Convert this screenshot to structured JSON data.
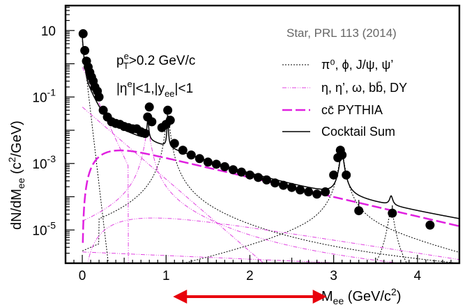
{
  "chart_data": {
    "type": "scatter",
    "xlabel": "M",
    "xlabel_sub": "ee",
    "xlabel_unit": " (GeV/c",
    "xlabel_unit_sup": "2",
    "xlabel_close": ")",
    "ylabel": "dN/dM",
    "ylabel_sub": "ee",
    "ylabel_unit": " (c",
    "ylabel_unit_sup": "2",
    "ylabel_close": "/GeV)",
    "x_range": [
      -0.2,
      4.5
    ],
    "y_range_log10": [
      -6,
      1.75
    ],
    "y_scale": "log",
    "x_ticks": [
      0,
      1,
      2,
      3,
      4
    ],
    "x_tick_labels": [
      "0",
      "1",
      "2",
      "3",
      "4"
    ],
    "y_ticks": [
      {
        "value": 10,
        "base": "10",
        "exp": ""
      },
      {
        "value": 0.1,
        "base": "10",
        "exp": "-1"
      },
      {
        "value": 0.001,
        "base": "10",
        "exp": "-3"
      },
      {
        "value": 1e-05,
        "base": "10",
        "exp": "-5"
      }
    ],
    "source_label": "Star, PRL 113 (2014)",
    "cuts": {
      "line1_pre": "p",
      "line1_sup": "e",
      "line1_sub": "T",
      "line1_post": ">0.2 GeV/c",
      "line2_a": "|η",
      "line2_sup": "e",
      "line2_b": "|<1,|y",
      "line2_sub": "ee",
      "line2_c": "|<1"
    },
    "legend": [
      {
        "label": "π⁰, ϕ, J/ψ, ψ’",
        "style": "dotted",
        "color": "#000000"
      },
      {
        "label": "η, η’, ω, bb̄, DY",
        "style": "dashdot",
        "color": "#e040e0"
      },
      {
        "label": "cc̄ PYTHIA",
        "style": "longdash",
        "color": "#e020e0"
      },
      {
        "label": "Cocktail Sum",
        "style": "solid",
        "color": "#000000"
      }
    ],
    "series": [
      {
        "name": "data",
        "points": [
          [
            0.01,
            8.0
          ],
          [
            0.03,
            2.5
          ],
          [
            0.05,
            1.2
          ],
          [
            0.07,
            0.8
          ],
          [
            0.09,
            0.55
          ],
          [
            0.11,
            0.4
          ],
          [
            0.13,
            0.3
          ],
          [
            0.15,
            0.2
          ],
          [
            0.18,
            0.15
          ],
          [
            0.2,
            0.1
          ],
          [
            0.25,
            0.04
          ],
          [
            0.3,
            0.025
          ],
          [
            0.35,
            0.018
          ],
          [
            0.4,
            0.016
          ],
          [
            0.45,
            0.015
          ],
          [
            0.5,
            0.013
          ],
          [
            0.55,
            0.012
          ],
          [
            0.6,
            0.011
          ],
          [
            0.65,
            0.011
          ],
          [
            0.7,
            0.009
          ],
          [
            0.75,
            0.008
          ],
          [
            0.78,
            0.025
          ],
          [
            0.8,
            0.05
          ],
          [
            0.83,
            0.018
          ],
          [
            0.95,
            0.012
          ],
          [
            1.0,
            0.015
          ],
          [
            1.02,
            0.04
          ],
          [
            1.05,
            0.02
          ],
          [
            1.1,
            0.004
          ],
          [
            1.2,
            0.0025
          ],
          [
            1.3,
            0.0018
          ],
          [
            1.4,
            0.0014
          ],
          [
            1.5,
            0.0011
          ],
          [
            1.6,
            0.00095
          ],
          [
            1.7,
            0.0008
          ],
          [
            1.8,
            0.00065
          ],
          [
            1.9,
            0.00055
          ],
          [
            2.0,
            0.00045
          ],
          [
            2.1,
            0.00038
          ],
          [
            2.2,
            0.00032
          ],
          [
            2.3,
            0.00026
          ],
          [
            2.4,
            0.00022
          ],
          [
            2.5,
            0.00019
          ],
          [
            2.6,
            0.00016
          ],
          [
            2.7,
            0.00014
          ],
          [
            2.8,
            0.00012
          ],
          [
            2.9,
            0.00014
          ],
          [
            3.0,
            0.00045
          ],
          [
            3.05,
            0.0015
          ],
          [
            3.08,
            0.0025
          ],
          [
            3.1,
            0.0018
          ],
          [
            3.15,
            0.00045
          ],
          [
            3.3,
            3.8e-05
          ],
          [
            3.7,
            3.2e-05
          ],
          [
            4.15,
            1.4e-05
          ]
        ],
        "errors_above": [
          [
            3.3,
            8e-05
          ],
          [
            3.7,
            5.5e-05
          ]
        ]
      }
    ],
    "arrow_range_gev": [
      1.0,
      3.0
    ]
  }
}
